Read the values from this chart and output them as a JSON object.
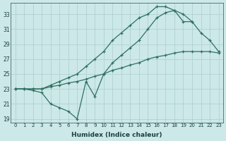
{
  "xlabel": "Humidex (Indice chaleur)",
  "bg_color": "#cce8e8",
  "grid_color": "#aacece",
  "line_color": "#2e7060",
  "xlim": [
    -0.5,
    23.5
  ],
  "ylim": [
    18.5,
    34.5
  ],
  "yticks": [
    19,
    21,
    23,
    25,
    27,
    29,
    31,
    33
  ],
  "xticks": [
    0,
    1,
    2,
    3,
    4,
    5,
    6,
    7,
    8,
    9,
    10,
    11,
    12,
    13,
    14,
    15,
    16,
    17,
    18,
    19,
    20,
    21,
    22,
    23
  ],
  "line1_x": [
    0,
    1,
    2,
    3,
    4,
    5,
    6,
    7,
    8,
    9,
    10,
    11,
    12,
    13,
    14,
    15,
    16,
    17,
    18,
    19,
    20
  ],
  "line1_y": [
    23.0,
    23.0,
    22.8,
    22.5,
    21.0,
    20.5,
    20.0,
    19.0,
    24.0,
    22.0,
    25.0,
    26.5,
    27.5,
    28.5,
    29.5,
    31.0,
    32.5,
    33.2,
    33.5,
    32.0,
    32.0
  ],
  "line2_x": [
    0,
    1,
    2,
    3,
    4,
    5,
    6,
    7,
    8,
    9,
    10,
    11,
    12,
    13,
    14,
    15,
    16,
    17,
    18,
    19,
    20,
    21,
    22,
    23
  ],
  "line2_y": [
    23.0,
    23.0,
    23.0,
    23.0,
    23.5,
    24.0,
    24.5,
    25.0,
    26.0,
    27.0,
    28.0,
    29.5,
    30.5,
    31.5,
    32.5,
    33.0,
    34.0,
    34.0,
    33.5,
    33.0,
    32.0,
    30.5,
    29.5,
    28.0
  ],
  "line3_x": [
    0,
    1,
    2,
    3,
    4,
    5,
    6,
    7,
    8,
    9,
    10,
    11,
    12,
    13,
    14,
    15,
    16,
    17,
    18,
    19,
    20,
    21,
    22,
    23
  ],
  "line3_y": [
    23.0,
    23.0,
    23.0,
    23.0,
    23.3,
    23.5,
    23.8,
    24.0,
    24.3,
    24.7,
    25.0,
    25.5,
    25.8,
    26.2,
    26.5,
    27.0,
    27.3,
    27.5,
    27.8,
    28.0,
    28.0,
    28.0,
    28.0,
    27.8
  ]
}
